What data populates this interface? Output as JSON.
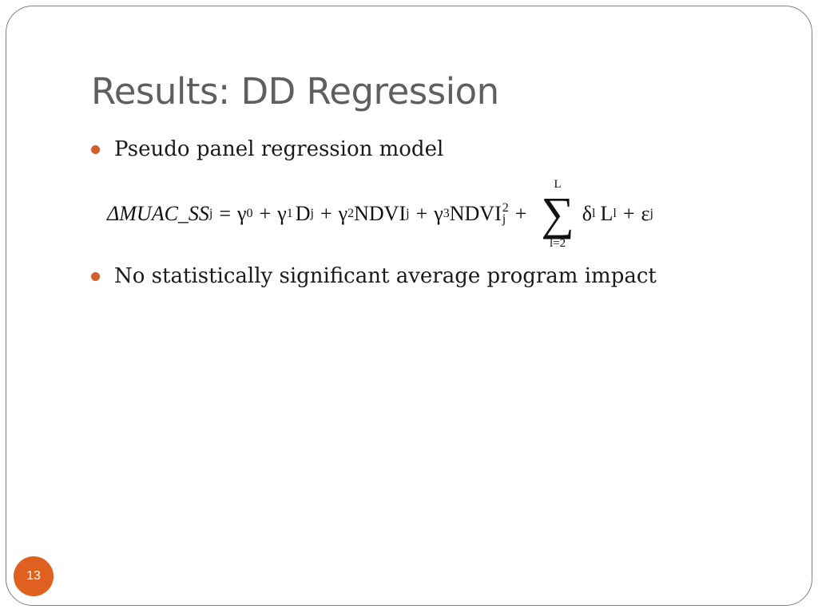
{
  "slide": {
    "title": "Results: DD Regression",
    "bullets": [
      "Pseudo panel regression model",
      "No statistically significant average program impact"
    ],
    "equation": {
      "lhs": "ΔMUAC_SS",
      "lhs_sub": "j",
      "eq": "=",
      "g0": "γ",
      "g0_sub": "0",
      "plus1": "+",
      "g1": "γ",
      "g1_sub": "1",
      "d": "D",
      "d_sub": "j",
      "plus2": "+",
      "g2": "γ",
      "g2_sub": "2",
      "ndvi1": "NDVI",
      "ndvi1_sub": "j",
      "plus3": "+",
      "g3": "γ",
      "g3_sub": "3",
      "ndvi2": "NDVI",
      "ndvi2_sup": "2",
      "ndvi2_sub": "j",
      "plus4": "+",
      "sum_upper": "L",
      "sum_symbol": "∑",
      "sum_lower": "l=2",
      "delta": "δ",
      "delta_sub": "l",
      "l_var": "L",
      "l_sub": "l",
      "plus5": "+",
      "eps": "ε",
      "eps_sub": "j"
    },
    "page_number": "13"
  },
  "colors": {
    "title": "#5f5f5f",
    "bullet": "#d25f2a",
    "badge": "#e0601f",
    "frame": "#7f7f7f"
  }
}
